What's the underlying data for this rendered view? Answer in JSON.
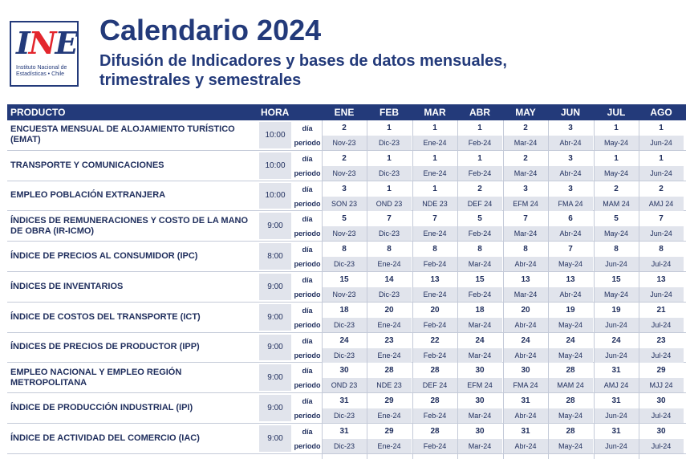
{
  "logo": {
    "mark_i": "I",
    "mark_n": "N",
    "mark_e": "E",
    "line1": "Instituto Nacional de",
    "line2": "Estadísticas • Chile"
  },
  "title": "Calendario 2024",
  "subtitle_line1": "Difusión de Indicadores y bases de datos mensuales,",
  "subtitle_line2": "trimestrales y semestrales",
  "header": {
    "producto": "PRODUCTO",
    "hora": "HORA",
    "months": [
      "ENE",
      "FEB",
      "MAR",
      "ABR",
      "MAY",
      "JUN",
      "JUL",
      "AGO"
    ]
  },
  "labels": {
    "dia": "día",
    "periodo": "periodo"
  },
  "rows": [
    {
      "producto": "ENCUESTA MENSUAL DE ALOJAMIENTO TURÍSTICO (EMAT)",
      "hora": "10:00",
      "dias": [
        "2",
        "1",
        "1",
        "1",
        "2",
        "3",
        "1",
        "1"
      ],
      "periodos": [
        "Nov-23",
        "Dic-23",
        "Ene-24",
        "Feb-24",
        "Mar-24",
        "Abr-24",
        "May-24",
        "Jun-24"
      ]
    },
    {
      "producto": "TRANSPORTE Y COMUNICACIONES",
      "hora": "10:00",
      "dias": [
        "2",
        "1",
        "1",
        "1",
        "2",
        "3",
        "1",
        "1"
      ],
      "periodos": [
        "Nov-23",
        "Dic-23",
        "Ene-24",
        "Feb-24",
        "Mar-24",
        "Abr-24",
        "May-24",
        "Jun-24"
      ]
    },
    {
      "producto": "EMPLEO POBLACIÓN EXTRANJERA",
      "hora": "10:00",
      "dias": [
        "3",
        "1",
        "1",
        "2",
        "3",
        "3",
        "2",
        "2"
      ],
      "periodos": [
        "SON 23",
        "OND 23",
        "NDE 23",
        "DEF 24",
        "EFM 24",
        "FMA 24",
        "MAM 24",
        "AMJ 24"
      ]
    },
    {
      "producto": "ÍNDICES DE REMUNERACIONES Y COSTO DE LA MANO DE OBRA (IR-ICMO)",
      "hora": "9:00",
      "dias": [
        "5",
        "7",
        "7",
        "5",
        "7",
        "6",
        "5",
        "7"
      ],
      "periodos": [
        "Nov-23",
        "Dic-23",
        "Ene-24",
        "Feb-24",
        "Mar-24",
        "Abr-24",
        "May-24",
        "Jun-24"
      ]
    },
    {
      "producto": "ÍNDICE DE PRECIOS AL CONSUMIDOR (IPC)",
      "hora": "8:00",
      "dias": [
        "8",
        "8",
        "8",
        "8",
        "8",
        "7",
        "8",
        "8"
      ],
      "periodos": [
        "Dic-23",
        "Ene-24",
        "Feb-24",
        "Mar-24",
        "Abr-24",
        "May-24",
        "Jun-24",
        "Jul-24"
      ]
    },
    {
      "producto": "ÍNDICES DE INVENTARIOS",
      "hora": "9:00",
      "dias": [
        "15",
        "14",
        "13",
        "15",
        "13",
        "13",
        "15",
        "13"
      ],
      "periodos": [
        "Nov-23",
        "Dic-23",
        "Ene-24",
        "Feb-24",
        "Mar-24",
        "Abr-24",
        "May-24",
        "Jun-24"
      ]
    },
    {
      "producto": "ÍNDICE DE COSTOS DEL TRANSPORTE (ICT)",
      "hora": "9:00",
      "dias": [
        "18",
        "20",
        "20",
        "18",
        "20",
        "19",
        "19",
        "21"
      ],
      "periodos": [
        "Dic-23",
        "Ene-24",
        "Feb-24",
        "Mar-24",
        "Abr-24",
        "May-24",
        "Jun-24",
        "Jul-24"
      ]
    },
    {
      "producto": "ÍNDICES DE PRECIOS DE PRODUCTOR (IPP)",
      "hora": "9:00",
      "dias": [
        "24",
        "23",
        "22",
        "24",
        "24",
        "24",
        "24",
        "23"
      ],
      "periodos": [
        "Dic-23",
        "Ene-24",
        "Feb-24",
        "Mar-24",
        "Abr-24",
        "May-24",
        "Jun-24",
        "Jul-24"
      ]
    },
    {
      "producto": "EMPLEO NACIONAL Y EMPLEO REGIÓN METROPOLITANA",
      "hora": "9:00",
      "dias": [
        "30",
        "28",
        "28",
        "30",
        "30",
        "28",
        "31",
        "29"
      ],
      "periodos": [
        "OND 23",
        "NDE 23",
        "DEF 24",
        "EFM 24",
        "FMA 24",
        "MAM 24",
        "AMJ 24",
        "MJJ 24"
      ]
    },
    {
      "producto": "ÍNDICE DE PRODUCCIÓN INDUSTRIAL (IPI)",
      "hora": "9:00",
      "dias": [
        "31",
        "29",
        "28",
        "30",
        "31",
        "28",
        "31",
        "30"
      ],
      "periodos": [
        "Dic-23",
        "Ene-24",
        "Feb-24",
        "Mar-24",
        "Abr-24",
        "May-24",
        "Jun-24",
        "Jul-24"
      ]
    },
    {
      "producto": "ÍNDICE DE ACTIVIDAD DEL COMERCIO (IAC)",
      "hora": "9:00",
      "dias": [
        "31",
        "29",
        "28",
        "30",
        "31",
        "28",
        "31",
        "30"
      ],
      "periodos": [
        "Dic-23",
        "Ene-24",
        "Feb-24",
        "Mar-24",
        "Abr-24",
        "May-24",
        "Jun-24",
        "Jul-24"
      ]
    }
  ]
}
